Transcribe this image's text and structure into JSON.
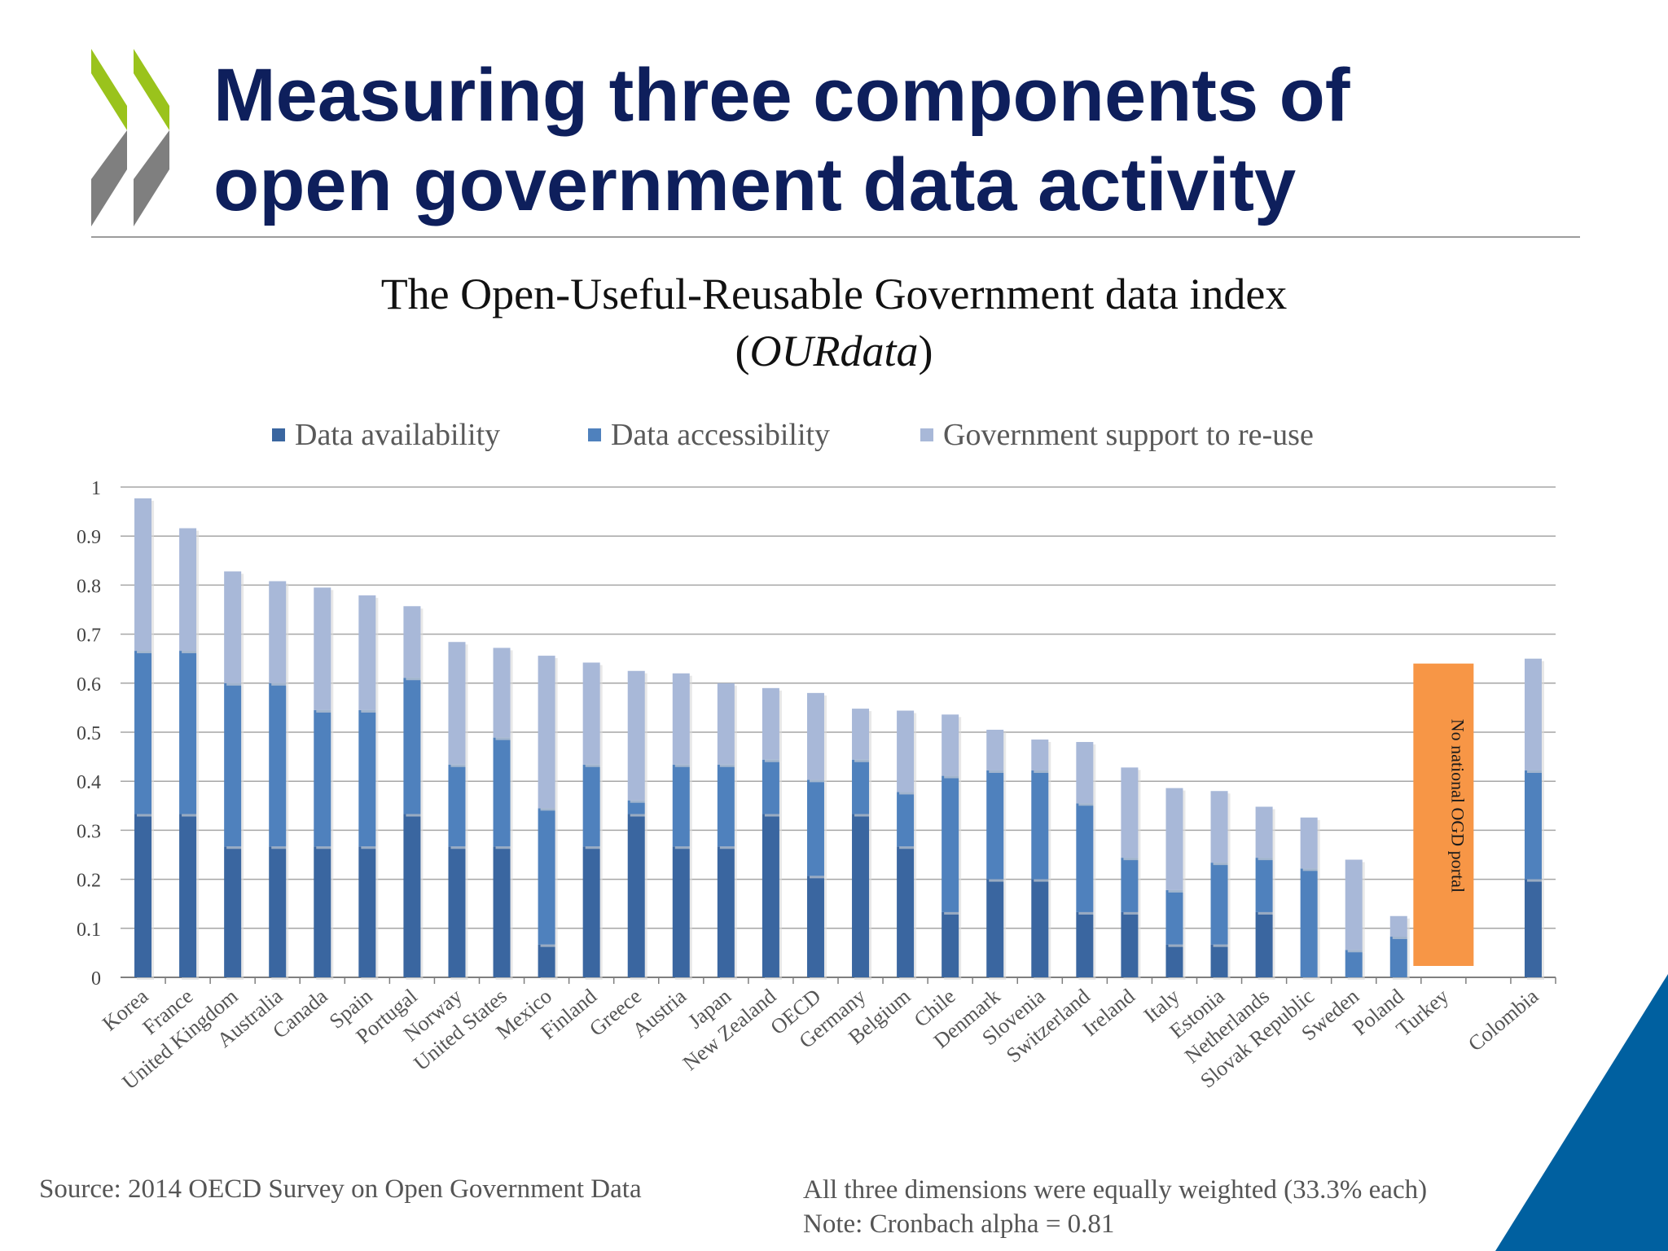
{
  "slide": {
    "title_line1": "Measuring three components of",
    "title_line2": "open government data activity",
    "source": "Source: 2014 OECD Survey on Open Government Data",
    "note_line1": "All three dimensions were equally weighted (33.3% each)",
    "note_line2": "Note: Cronbach alpha = 0.81"
  },
  "chart_title": {
    "line1": "The Open-Useful-Reusable Government data index",
    "paren_open": "(",
    "italic": "OURdata",
    "paren_close": ")"
  },
  "colors": {
    "title": "#0e1f5c",
    "data_availability": "#3a66a0",
    "data_accessibility": "#4f81bd",
    "government_support": "#a8b8d8",
    "annotation_box": "#f79646",
    "logo_green": "#9ac31c",
    "logo_gray": "#7f7f7f",
    "corner_blue": "#0060a0"
  },
  "icons": {
    "logo": "oecd-chevrons-logo"
  },
  "chart_data": {
    "type": "bar",
    "stacked": true,
    "categories": [
      "Korea",
      "France",
      "United Kingdom",
      "Australia",
      "Canada",
      "Spain",
      "Portugal",
      "Norway",
      "United States",
      "Mexico",
      "Finland",
      "Greece",
      "Austria",
      "Japan",
      "New Zealand",
      "OECD",
      "Germany",
      "Belgium",
      "Chile",
      "Denmark",
      "Slovenia",
      "Switzerland",
      "Ireland",
      "Italy",
      "Estonia",
      "Netherlands",
      "Slovak Republic",
      "Sweden",
      "Poland",
      "Turkey",
      "",
      "Colombia"
    ],
    "series": [
      {
        "name": "Data availability",
        "values": [
          0.333,
          0.333,
          0.267,
          0.267,
          0.267,
          0.267,
          0.333,
          0.267,
          0.267,
          0.067,
          0.267,
          0.333,
          0.267,
          0.267,
          0.333,
          0.207,
          0.333,
          0.267,
          0.133,
          0.2,
          0.2,
          0.133,
          0.133,
          0.067,
          0.067,
          0.133,
          0,
          0,
          0,
          null,
          null,
          0.2
        ]
      },
      {
        "name": "Data accessibility",
        "values": [
          0.333,
          0.333,
          0.333,
          0.333,
          0.278,
          0.278,
          0.278,
          0.167,
          0.222,
          0.278,
          0.167,
          0.028,
          0.167,
          0.167,
          0.111,
          0.196,
          0.111,
          0.111,
          0.278,
          0.222,
          0.222,
          0.222,
          0.111,
          0.111,
          0.167,
          0.111,
          0.222,
          0.056,
          0.083,
          null,
          null,
          0.222
        ]
      },
      {
        "name": "Government support to re-use",
        "values": [
          0.311,
          0.25,
          0.228,
          0.208,
          0.25,
          0.234,
          0.146,
          0.25,
          0.183,
          0.311,
          0.208,
          0.264,
          0.186,
          0.166,
          0.146,
          0.177,
          0.104,
          0.166,
          0.125,
          0.083,
          0.063,
          0.125,
          0.184,
          0.208,
          0.146,
          0.104,
          0.104,
          0.184,
          0.042,
          null,
          null,
          0.228
        ]
      }
    ],
    "ylim": [
      0,
      1
    ],
    "yticks": [
      0,
      0.1,
      0.2,
      0.3,
      0.4,
      0.5,
      0.6,
      0.7,
      0.8,
      0.9,
      1
    ],
    "ytick_labels": [
      "0",
      "0.1",
      "0.2",
      "0.3",
      "0.4",
      "0.5",
      "0.6",
      "0.7",
      "0.8",
      "0.9",
      "1"
    ],
    "grid": true,
    "legend": "top",
    "annotation": {
      "category": "Turkey",
      "text": "No national OGD portal",
      "value": 0.64
    }
  }
}
